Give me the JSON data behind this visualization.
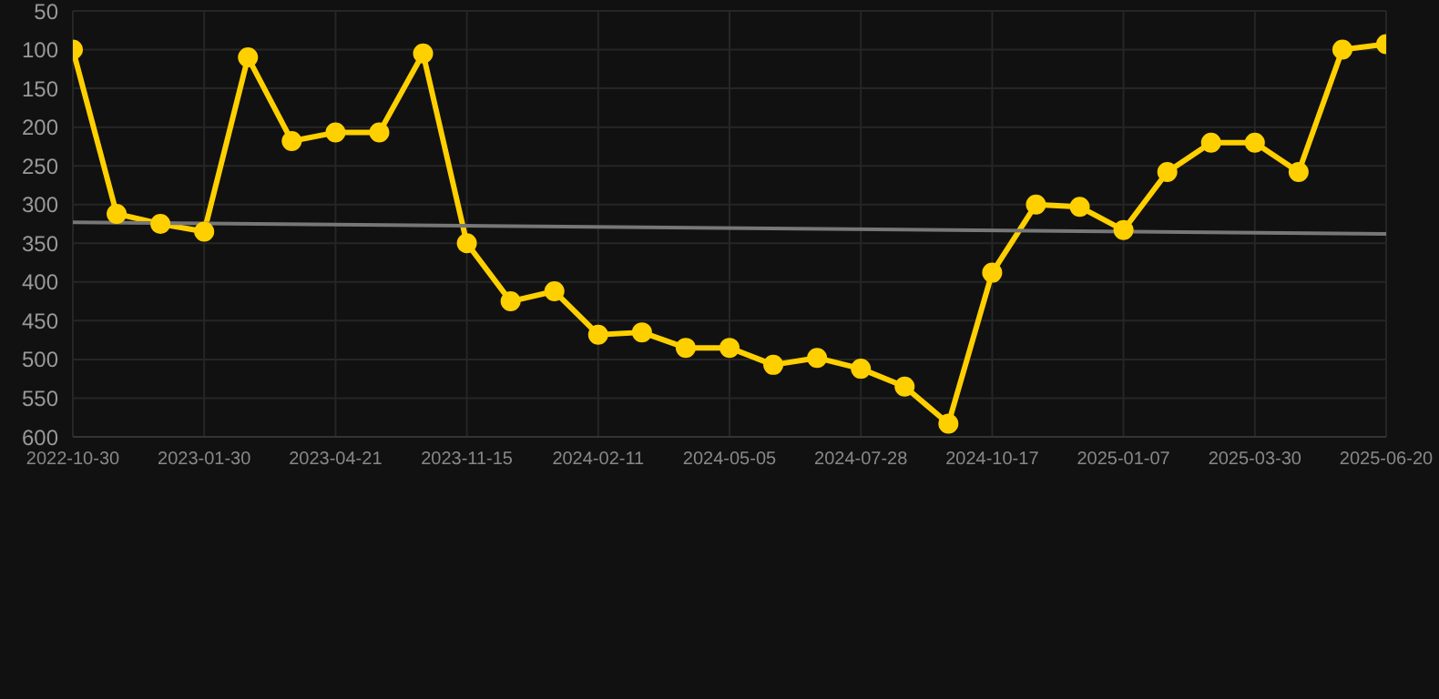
{
  "chart_data": {
    "type": "line",
    "categories": [
      "2022-10-30",
      null,
      null,
      "2023-01-30",
      null,
      null,
      "2023-04-21",
      null,
      null,
      "2023-11-15",
      null,
      null,
      "2024-02-11",
      null,
      null,
      "2024-05-05",
      null,
      null,
      "2024-07-28",
      null,
      null,
      "2024-10-17",
      null,
      null,
      "2025-01-07",
      null,
      null,
      "2025-03-30",
      null,
      null,
      "2025-06-20"
    ],
    "series": [
      {
        "color": "#ffd000",
        "values": [
          100,
          312,
          325,
          335,
          110,
          218,
          207,
          207,
          105,
          350,
          425,
          412,
          468,
          465,
          485,
          485,
          507,
          498,
          512,
          535,
          583,
          388,
          300,
          303,
          333,
          258,
          220,
          220,
          258,
          100,
          93
        ]
      },
      {
        "type": "line",
        "color": "#777777",
        "marker": "none",
        "values": [
          323,
          null,
          null,
          null,
          null,
          null,
          null,
          null,
          null,
          null,
          null,
          null,
          null,
          null,
          null,
          null,
          null,
          null,
          null,
          null,
          null,
          null,
          null,
          null,
          null,
          null,
          null,
          null,
          null,
          null,
          338
        ]
      }
    ],
    "ylim": [
      600,
      50
    ],
    "yticks": [
      50,
      100,
      150,
      200,
      250,
      300,
      350,
      400,
      450,
      500,
      550,
      600
    ],
    "grid": true,
    "marker": "circle",
    "line_style": "solid"
  }
}
